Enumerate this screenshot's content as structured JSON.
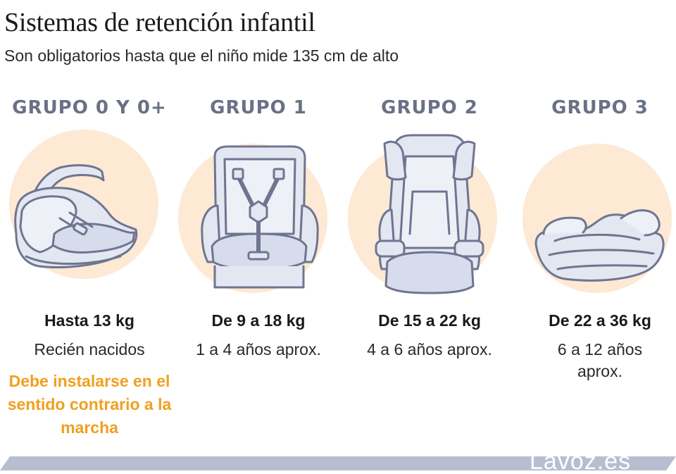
{
  "header": {
    "title": "Sistemas de retención infantil",
    "subtitle": "Son obligatorios hasta que el niño mide 135 cm de alto"
  },
  "groups": [
    {
      "label": "GRUPO 0 Y 0+",
      "weight": "Hasta 13 kg",
      "age": "Recién nacidos",
      "note": "Debe instalarse en el sentido contrario a la marcha",
      "illustration": "infant-carrier-icon"
    },
    {
      "label": "GRUPO 1",
      "weight": "De 9 a 18 kg",
      "age": "1 a 4 años aprox.",
      "illustration": "harness-seat-icon"
    },
    {
      "label": "GRUPO 2",
      "weight": "De 15 a 22 kg",
      "age": "4 a 6 años aprox.",
      "illustration": "high-back-booster-icon"
    },
    {
      "label": "GRUPO 3",
      "weight": "De 22 a 36 kg",
      "age": "6 a 12 años aprox.",
      "illustration": "booster-cushion-icon"
    }
  ],
  "footer": {
    "brand": "Lavoz.es"
  },
  "colors": {
    "circle": "#fde9d4",
    "seat_fill": "#e3e7f1",
    "seat_stroke": "#6f7590",
    "group_label": "#6a7086",
    "note": "#f0a020",
    "footer_bar": "#b7bed0"
  }
}
